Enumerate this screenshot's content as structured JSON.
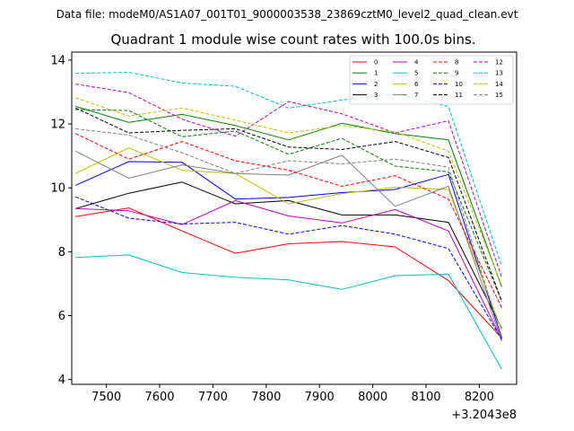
{
  "header": {
    "file_label": "Data file: modeM0/AS1A07_001T01_9000003538_23869cztM0_level2_quad_clean.evt"
  },
  "chart_data": {
    "type": "line",
    "title": "Quadrant 1 module wise count rates with 100.0s bins.",
    "xlabel": "",
    "ylabel": "",
    "x_offset_label": "+3.2043e8",
    "xlim": [
      7435,
      8270
    ],
    "ylim": [
      3.85,
      14.25
    ],
    "x_ticks": [
      7500,
      7600,
      7700,
      7800,
      7900,
      8000,
      8100,
      8200
    ],
    "x_tick_labels": [
      "7500",
      "7600",
      "7700",
      "7800",
      "7900",
      "8000",
      "8100",
      "8200"
    ],
    "y_ticks": [
      4,
      6,
      8,
      10,
      12,
      14
    ],
    "y_tick_labels": [
      "4",
      "6",
      "8",
      "10",
      "12",
      "14"
    ],
    "grid": false,
    "legend_position": "top-right",
    "legend_columns": 4,
    "x": [
      7442,
      7542,
      7642,
      7742,
      7842,
      7942,
      8042,
      8142,
      8242
    ],
    "series": [
      {
        "name": "0",
        "color": "#ff0000",
        "dash": "solid",
        "values": [
          9.1,
          9.37,
          8.65,
          7.95,
          8.25,
          8.32,
          8.15,
          7.1,
          5.3
        ]
      },
      {
        "name": "1",
        "color": "#008000",
        "dash": "solid",
        "values": [
          12.55,
          12.05,
          12.3,
          11.95,
          11.5,
          12.02,
          11.7,
          11.5,
          6.9
        ]
      },
      {
        "name": "2",
        "color": "#0000ff",
        "dash": "solid",
        "values": [
          10.08,
          10.82,
          10.8,
          9.65,
          9.7,
          9.85,
          9.95,
          10.42,
          5.3
        ]
      },
      {
        "name": "3",
        "color": "#000000",
        "dash": "solid",
        "values": [
          9.35,
          9.83,
          10.18,
          9.5,
          9.6,
          9.15,
          9.15,
          8.92,
          5.6
        ]
      },
      {
        "name": "4",
        "color": "#bf00bf",
        "dash": "solid",
        "values": [
          9.35,
          9.28,
          8.85,
          9.6,
          9.12,
          8.9,
          9.32,
          8.65,
          5.25
        ]
      },
      {
        "name": "5",
        "color": "#00bfbf",
        "dash": "solid",
        "values": [
          7.82,
          7.9,
          7.35,
          7.2,
          7.12,
          6.82,
          7.25,
          7.3,
          4.32
        ]
      },
      {
        "name": "6",
        "color": "#bfbf00",
        "dash": "solid",
        "values": [
          10.45,
          11.25,
          10.55,
          10.45,
          9.5,
          9.82,
          10.02,
          9.95,
          5.55
        ]
      },
      {
        "name": "7",
        "color": "#808080",
        "dash": "solid",
        "values": [
          11.15,
          10.3,
          10.72,
          10.45,
          10.4,
          11.02,
          9.42,
          10.05,
          5.2
        ]
      },
      {
        "name": "8",
        "color": "#ff0000",
        "dash": "dashed",
        "values": [
          11.7,
          10.9,
          11.45,
          10.85,
          10.55,
          10.05,
          10.38,
          9.65,
          6.25
        ]
      },
      {
        "name": "9",
        "color": "#008000",
        "dash": "dashed",
        "values": [
          12.45,
          12.42,
          11.6,
          11.78,
          11.05,
          11.55,
          10.68,
          10.5,
          6.45
        ]
      },
      {
        "name": "10",
        "color": "#0000ff",
        "dash": "dashed",
        "values": [
          9.72,
          9.05,
          8.87,
          8.92,
          8.55,
          8.82,
          8.55,
          8.1,
          5.25
        ]
      },
      {
        "name": "11",
        "color": "#000000",
        "dash": "dashed",
        "values": [
          12.5,
          11.72,
          11.8,
          11.85,
          11.28,
          11.2,
          11.45,
          10.95,
          6.45
        ]
      },
      {
        "name": "12",
        "color": "#bf00bf",
        "dash": "dashed",
        "values": [
          13.25,
          12.98,
          12.15,
          11.62,
          12.7,
          12.32,
          11.72,
          12.1,
          7.2
        ]
      },
      {
        "name": "13",
        "color": "#00bfbf",
        "dash": "dashed",
        "values": [
          13.58,
          13.62,
          13.28,
          13.18,
          12.5,
          12.75,
          12.95,
          12.55,
          7.55
        ]
      },
      {
        "name": "14",
        "color": "#bfbf00",
        "dash": "dashed",
        "values": [
          12.82,
          12.25,
          12.5,
          12.12,
          11.72,
          11.95,
          11.75,
          11.15,
          6.95
        ]
      },
      {
        "name": "15",
        "color": "#808080",
        "dash": "dashed",
        "values": [
          11.85,
          11.65,
          11.1,
          10.45,
          10.85,
          10.75,
          10.9,
          10.65,
          5.35
        ]
      }
    ]
  }
}
